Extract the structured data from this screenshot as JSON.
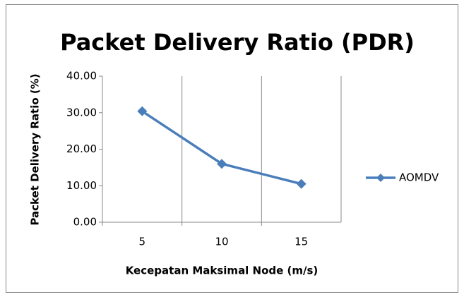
{
  "chart_data": {
    "type": "line",
    "title": "Packet Delivery Ratio (PDR)",
    "x_label": "Kecepatan Maksimal Node (m/s)",
    "y_label": "Packet Delivery Ratio (%)",
    "categories": [
      "5",
      "10",
      "15"
    ],
    "series": [
      {
        "name": "AOMDV",
        "color": "#4a7ebb",
        "values": [
          30.4,
          16.0,
          10.5
        ]
      }
    ],
    "ylim": [
      0,
      40
    ],
    "yticks": [
      {
        "value": 0,
        "label": "0.00"
      },
      {
        "value": 10,
        "label": "10.00"
      },
      {
        "value": 20,
        "label": "20.00"
      },
      {
        "value": 30,
        "label": "30.00"
      },
      {
        "value": 40,
        "label": "40.00"
      }
    ],
    "grid": "vertical",
    "legend": "right"
  }
}
